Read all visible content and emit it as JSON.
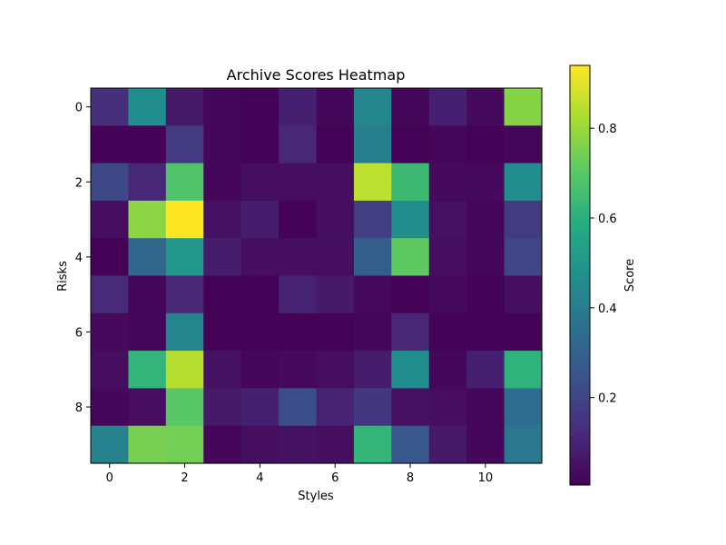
{
  "chart_data": {
    "type": "heatmap",
    "title": "Archive Scores Heatmap",
    "xlabel": "Styles",
    "ylabel": "Risks",
    "colorbar_label": "Score",
    "colormap": "viridis",
    "vmin": 0.005,
    "vmax": 0.94,
    "x_ticks": [
      0,
      2,
      4,
      6,
      8,
      10
    ],
    "y_ticks": [
      0,
      2,
      4,
      6,
      8
    ],
    "colorbar_ticks": [
      0.2,
      0.4,
      0.6,
      0.8
    ],
    "grid": false,
    "n_cols": 12,
    "n_rows": 10,
    "values": [
      [
        0.13,
        0.46,
        0.07,
        0.02,
        0.01,
        0.09,
        0.02,
        0.43,
        0.02,
        0.09,
        0.03,
        0.77
      ],
      [
        0.01,
        0.01,
        0.17,
        0.02,
        0.01,
        0.11,
        0.01,
        0.41,
        0.01,
        0.02,
        0.01,
        0.02
      ],
      [
        0.21,
        0.11,
        0.68,
        0.02,
        0.04,
        0.04,
        0.04,
        0.85,
        0.64,
        0.03,
        0.03,
        0.46
      ],
      [
        0.04,
        0.78,
        0.94,
        0.05,
        0.08,
        0.01,
        0.04,
        0.18,
        0.46,
        0.05,
        0.02,
        0.17
      ],
      [
        0.01,
        0.32,
        0.5,
        0.08,
        0.04,
        0.04,
        0.04,
        0.29,
        0.71,
        0.04,
        0.02,
        0.2
      ],
      [
        0.12,
        0.02,
        0.11,
        0.01,
        0.01,
        0.1,
        0.07,
        0.03,
        0.01,
        0.03,
        0.01,
        0.04
      ],
      [
        0.03,
        0.02,
        0.43,
        0.01,
        0.01,
        0.01,
        0.01,
        0.02,
        0.11,
        0.01,
        0.01,
        0.01
      ],
      [
        0.04,
        0.62,
        0.84,
        0.05,
        0.02,
        0.03,
        0.04,
        0.08,
        0.46,
        0.02,
        0.09,
        0.61
      ],
      [
        0.02,
        0.04,
        0.7,
        0.07,
        0.09,
        0.23,
        0.1,
        0.16,
        0.05,
        0.04,
        0.02,
        0.34
      ],
      [
        0.42,
        0.75,
        0.74,
        0.02,
        0.04,
        0.05,
        0.04,
        0.62,
        0.26,
        0.07,
        0.02,
        0.38
      ]
    ]
  }
}
